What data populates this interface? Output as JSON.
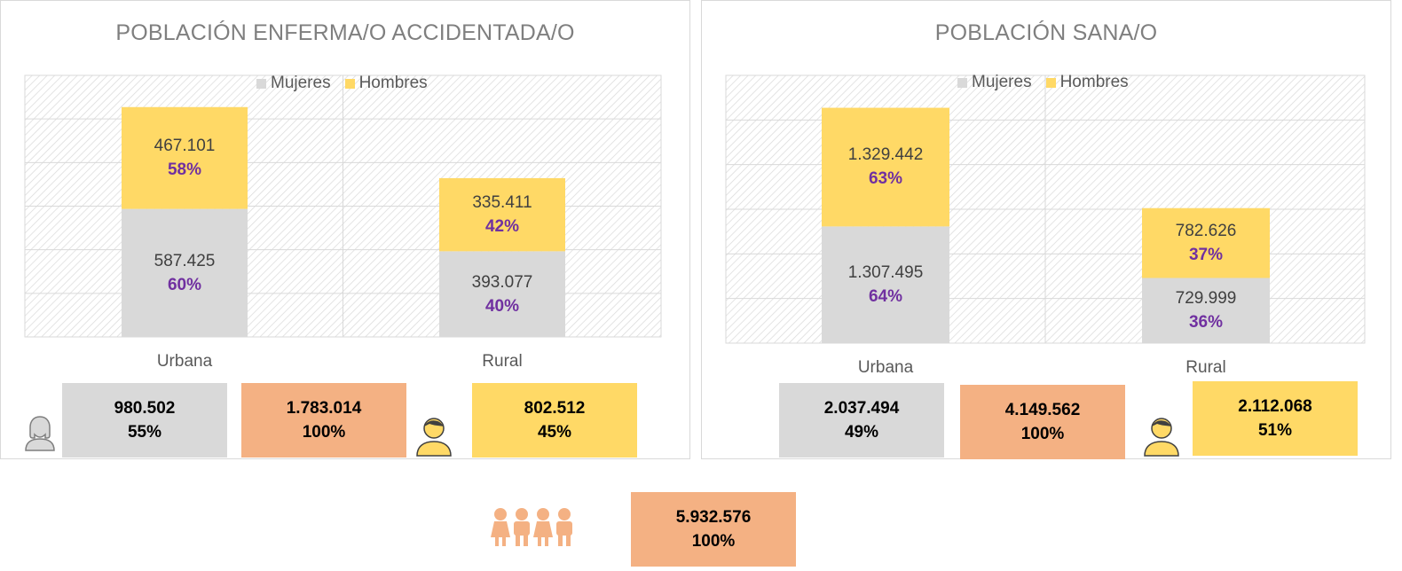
{
  "colors": {
    "mujeres": "#d9d9d9",
    "hombres": "#ffd966",
    "total": "#f4b183",
    "pct": "#7030a0",
    "icon_male": "#ffd966",
    "icon_female": "#d9d9d9",
    "icon_family": "#f4b183"
  },
  "chart_data": [
    {
      "type": "bar",
      "stacked": true,
      "title": "POBLACIÓN ENFERMA/O ACCIDENTADA/O",
      "categories": [
        "Urbana",
        "Rural"
      ],
      "series": [
        {
          "name": "Mujeres",
          "values": [
            587425,
            393077
          ],
          "labels": [
            "587.425",
            "393.077"
          ],
          "pct": [
            "60%",
            "40%"
          ]
        },
        {
          "name": "Hombres",
          "values": [
            467101,
            335411
          ],
          "labels": [
            "467.101",
            "335.411"
          ],
          "pct": [
            "58%",
            "42%"
          ]
        }
      ],
      "ylim": [
        0,
        1200000
      ],
      "grid": true,
      "legend": "top-center",
      "totals": {
        "mujeres": {
          "value": "980.502",
          "pct": "55%"
        },
        "total": {
          "value": "1.783.014",
          "pct": "100%"
        },
        "hombres": {
          "value": "802.512",
          "pct": "45%"
        }
      }
    },
    {
      "type": "bar",
      "stacked": true,
      "title": "POBLACIÓN SANA/O",
      "categories": [
        "Urbana",
        "Rural"
      ],
      "series": [
        {
          "name": "Mujeres",
          "values": [
            1307495,
            729999
          ],
          "labels": [
            "1.307.495",
            "729.999"
          ],
          "pct": [
            "64%",
            "36%"
          ]
        },
        {
          "name": "Hombres",
          "values": [
            1329442,
            782626
          ],
          "labels": [
            "1.329.442",
            "782.626"
          ],
          "pct": [
            "63%",
            "37%"
          ]
        }
      ],
      "ylim": [
        0,
        3000000
      ],
      "grid": true,
      "legend": "top-center",
      "totals": {
        "mujeres": {
          "value": "2.037.494",
          "pct": "49%"
        },
        "total": {
          "value": "4.149.562",
          "pct": "100%"
        },
        "hombres": {
          "value": "2.112.068",
          "pct": "51%"
        }
      }
    }
  ],
  "grand_total": {
    "value": "5.932.576",
    "pct": "100%"
  }
}
